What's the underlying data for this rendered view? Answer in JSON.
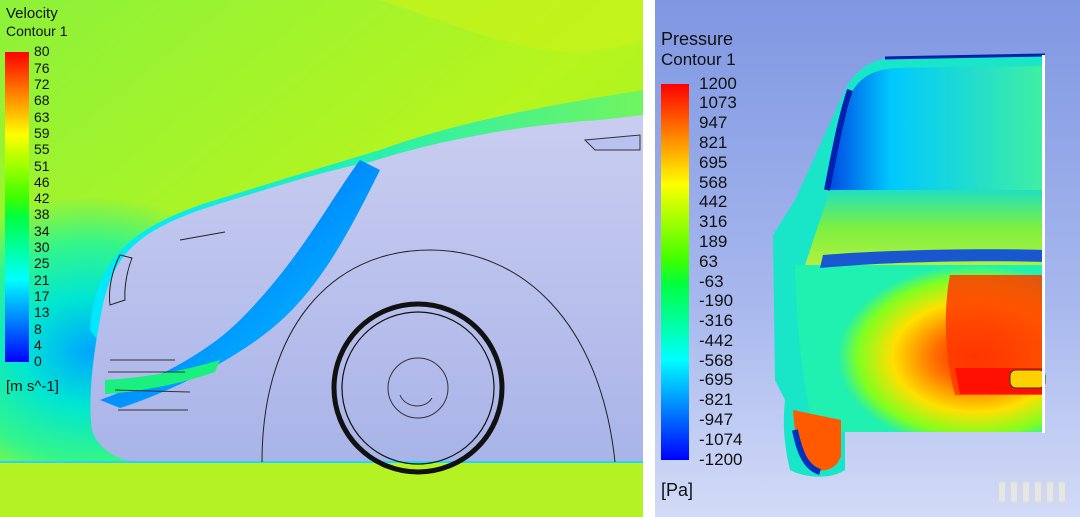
{
  "velocity_panel": {
    "title": "Velocity",
    "subtitle": "Contour 1",
    "ticks": [
      "80",
      "76",
      "72",
      "68",
      "63",
      "59",
      "55",
      "51",
      "46",
      "42",
      "38",
      "34",
      "30",
      "25",
      "21",
      "17",
      "13",
      "8",
      "4",
      "0"
    ],
    "unit": "[m s^-1]",
    "colormap": [
      "#ff0000",
      "#ff4000",
      "#ff8000",
      "#ffbf00",
      "#ffff00",
      "#bfff00",
      "#80ff00",
      "#40ff00",
      "#00ff40",
      "#00ff80",
      "#00ffbf",
      "#00ffff",
      "#00bfff",
      "#0080ff",
      "#0040ff",
      "#0000ff"
    ]
  },
  "pressure_panel": {
    "title": "Pressure",
    "subtitle": "Contour 1",
    "ticks": [
      "1200",
      "1073",
      "947",
      "821",
      "695",
      "568",
      "442",
      "316",
      "189",
      "63",
      "-63",
      "-190",
      "-316",
      "-442",
      "-568",
      "-695",
      "-821",
      "-947",
      "-1074",
      "-1200"
    ],
    "unit": "[Pa]",
    "colormap": [
      "#ff0000",
      "#ff4000",
      "#ff8000",
      "#ffbf00",
      "#ffff00",
      "#bfff00",
      "#80ff00",
      "#40ff00",
      "#00ff40",
      "#00ff80",
      "#00ffbf",
      "#00ffff",
      "#00bfff",
      "#0080ff",
      "#0040ff",
      "#0000ff"
    ]
  }
}
